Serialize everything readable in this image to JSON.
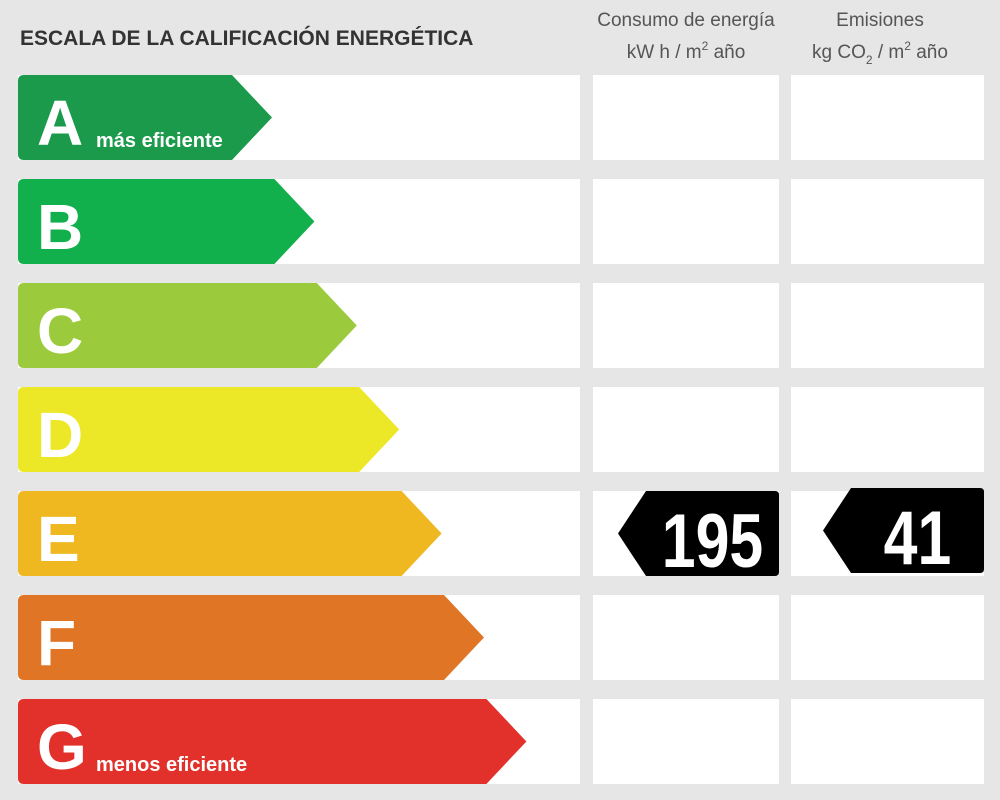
{
  "header": {
    "title": "ESCALA DE LA CALIFICACIÓN ENERGÉTICA",
    "columns": [
      {
        "title": "Consumo de energía",
        "unit": [
          "kW h  / m",
          "2",
          " año"
        ]
      },
      {
        "title": "Emisiones",
        "unit": [
          "kg CO",
          "2",
          "  / m",
          "2",
          " año"
        ]
      }
    ]
  },
  "ratings": [
    {
      "letter": "A",
      "label": "más eficiente",
      "color": "#1a9a4a"
    },
    {
      "letter": "B",
      "color": "#12b04d"
    },
    {
      "letter": "C",
      "color": "#9bcb3c"
    },
    {
      "letter": "D",
      "color": "#ece828"
    },
    {
      "letter": "E",
      "color": "#f0b820"
    },
    {
      "letter": "F",
      "color": "#e07526"
    },
    {
      "letter": "G",
      "label": "menos eficiente",
      "color": "#e2302a"
    }
  ],
  "indicators": [
    {
      "class": "E",
      "value": 195
    },
    {
      "class": "E",
      "value": 41
    }
  ]
}
